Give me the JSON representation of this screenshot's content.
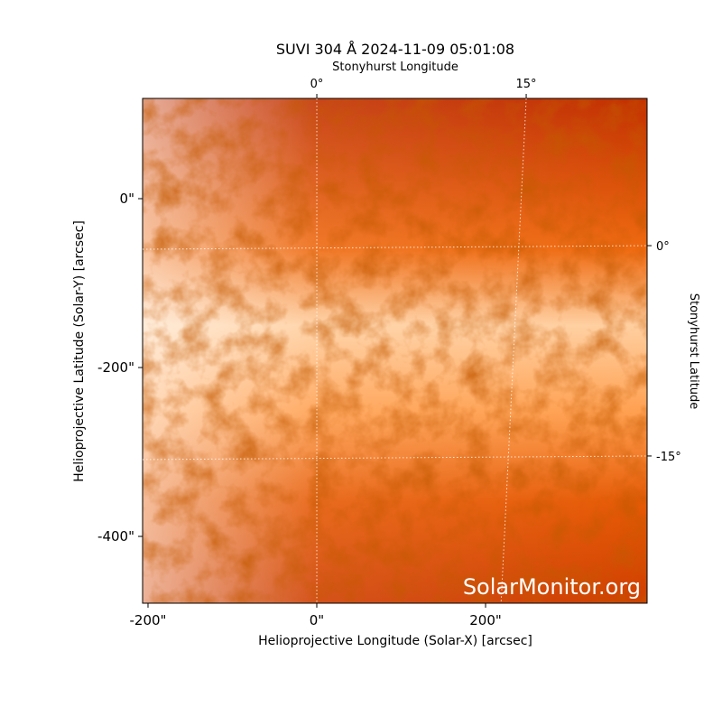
{
  "chart_data": {
    "type": "image",
    "title": "SUVI 304 Å 2024-11-09 05:01:08",
    "xlabel": "Helioprojective Longitude (Solar-X) [arcsec]",
    "ylabel": "Helioprojective Latitude (Solar-Y) [arcsec]",
    "x2label": "Stonyhurst Longitude",
    "y2label": "Stonyhurst Latitude",
    "xlim": [
      -206.4,
      391.4
    ],
    "ylim": [
      -479.1,
      118.7
    ],
    "xticks": [
      {
        "value": -200,
        "label": "-200\""
      },
      {
        "value": 0,
        "label": "0\""
      },
      {
        "value": 200,
        "label": "200\""
      }
    ],
    "yticks": [
      {
        "value": -400,
        "label": "-400\""
      },
      {
        "value": -200,
        "label": "-200\""
      },
      {
        "value": 0,
        "label": "0\""
      }
    ],
    "x2lim": [
      -12.48,
      23.66
    ],
    "x2ticks": [
      {
        "value": 0,
        "label": "0°"
      },
      {
        "value": 15,
        "label": "15°"
      }
    ],
    "y2lim": [
      -25.5,
      10.5
    ],
    "y2ticks": [
      {
        "value": 0,
        "label": "0°"
      },
      {
        "value": -15,
        "label": "-15°"
      }
    ],
    "watermark": "SolarMonitor.org"
  }
}
